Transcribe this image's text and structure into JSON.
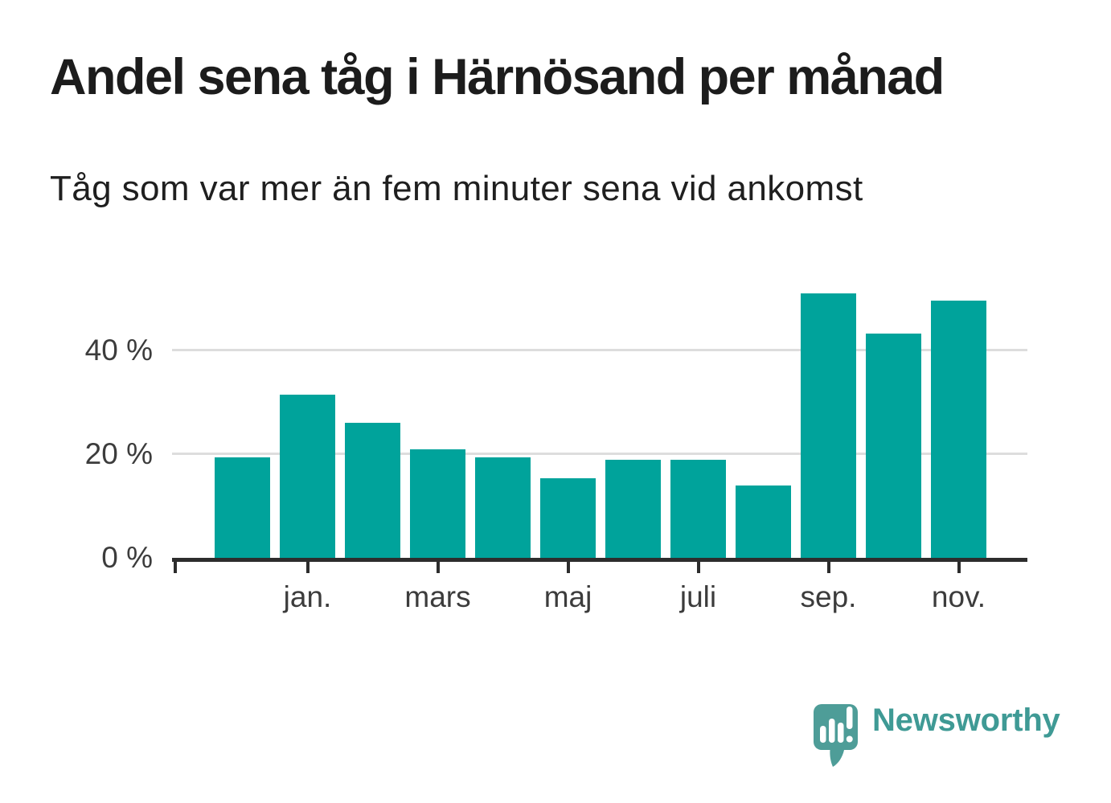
{
  "header": {
    "title": "Andel sena tåg i Härnösand per månad",
    "subtitle": "Tåg som var mer än fem minuter sena vid ankomst"
  },
  "chart_data": {
    "type": "bar",
    "values": [
      19.4,
      31.5,
      26.0,
      20.9,
      19.3,
      15.3,
      18.9,
      18.9,
      14.0,
      51.0,
      43.3,
      49.5
    ],
    "unit": "%",
    "x_tick_labels": [
      "jan.",
      "mars",
      "maj",
      "juli",
      "sep.",
      "nov."
    ],
    "x_tick_bar_indices": [
      1,
      3,
      5,
      7,
      9,
      11
    ],
    "has_axis_start_tick": true,
    "y_tick_labels": [
      "40 %",
      "20 %",
      "0 %"
    ],
    "y_tick_values": [
      40,
      20,
      0
    ],
    "ylim": [
      0,
      55
    ],
    "grid": "horizontal-only",
    "legend": "none",
    "bar_color": "#00a39b"
  },
  "branding": {
    "logo_text": "Newsworthy",
    "logo_icon": "newsworthy-speech-bubble-bar-chart-icon",
    "logo_text_color": "#3f9a95",
    "logo_icon_color": "#4e9d98"
  },
  "colors": {
    "background": "#ffffff",
    "bar": "#00a39b",
    "axis": "#2d2d2d",
    "gridline": "#dddddd",
    "axis_text": "#3c3c3c",
    "title_text": "#1c1c1c"
  }
}
